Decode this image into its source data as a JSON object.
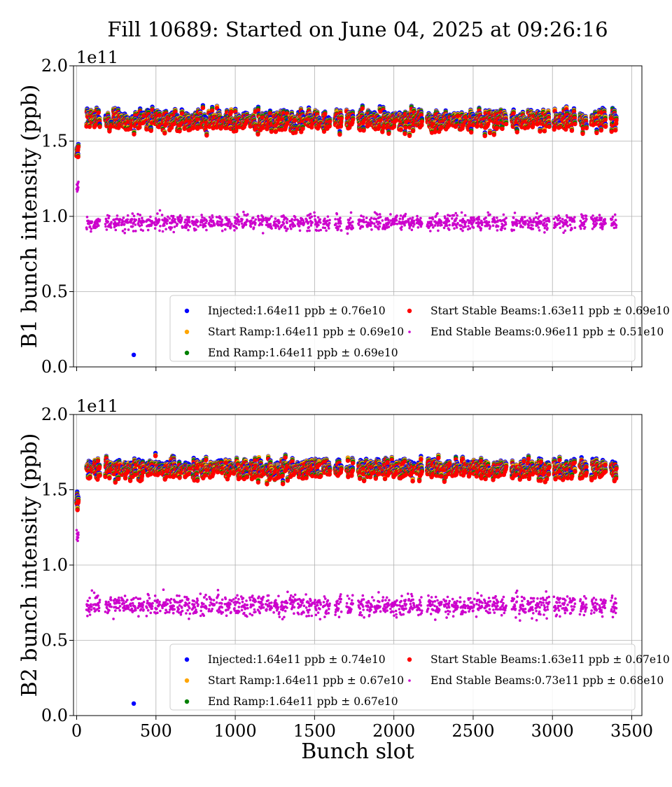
{
  "title": "Fill 10689: Started on June 04, 2025 at 09:26:16",
  "xlabel": "Bunch slot",
  "x_ticks": [
    "0",
    "500",
    "1000",
    "1500",
    "2000",
    "2500",
    "3000",
    "3500"
  ],
  "colors": {
    "injected": "#0000ff",
    "start_ramp": "#ffa500",
    "end_ramp": "#008000",
    "start_stable": "#ff0000",
    "end_stable": "#cc00cc",
    "grid": "#b0b0b0"
  },
  "chart_data": [
    {
      "type": "scatter",
      "ylabel": "B1 bunch intensity (ppb)",
      "y_exponent": "1e11",
      "xlim": [
        -20,
        3564
      ],
      "ylim": [
        0.0,
        2.0
      ],
      "y_ticks": [
        "0.0",
        "0.5",
        "1.0",
        "1.5",
        "2.0"
      ],
      "grid": true,
      "legend_position": "lower-right",
      "series": [
        {
          "key": "injected",
          "name": "Injected:1.64e11 ppb ± 0.76e10",
          "mean": 1.64,
          "std": 0.076
        },
        {
          "key": "start_ramp",
          "name": "Start Ramp:1.64e11 ppb ± 0.69e10",
          "mean": 1.64,
          "std": 0.069
        },
        {
          "key": "end_ramp",
          "name": "End Ramp:1.64e11 ppb ± 0.69e10",
          "mean": 1.64,
          "std": 0.069
        },
        {
          "key": "start_stable",
          "name": "Start Stable Beams:1.63e11 ppb ± 0.69e10",
          "mean": 1.63,
          "std": 0.069
        },
        {
          "key": "end_stable",
          "name": "End Stable Beams:0.96e11 ppb ± 0.51e10",
          "mean": 0.96,
          "std": 0.051
        }
      ],
      "outlier": {
        "x": 360,
        "y": 0.08
      }
    },
    {
      "type": "scatter",
      "ylabel": "B2 bunch intensity (ppb)",
      "y_exponent": "1e11",
      "xlim": [
        -20,
        3564
      ],
      "ylim": [
        0.0,
        2.0
      ],
      "y_ticks": [
        "0.0",
        "0.5",
        "1.0",
        "1.5",
        "2.0"
      ],
      "grid": true,
      "legend_position": "lower-right",
      "series": [
        {
          "key": "injected",
          "name": "Injected:1.64e11 ppb ± 0.74e10",
          "mean": 1.64,
          "std": 0.074
        },
        {
          "key": "start_ramp",
          "name": "Start Ramp:1.64e11 ppb ± 0.67e10",
          "mean": 1.64,
          "std": 0.067
        },
        {
          "key": "end_ramp",
          "name": "End Ramp:1.64e11 ppb ± 0.67e10",
          "mean": 1.64,
          "std": 0.067
        },
        {
          "key": "start_stable",
          "name": "Start Stable Beams:1.63e11 ppb ± 0.67e10",
          "mean": 1.63,
          "std": 0.067
        },
        {
          "key": "end_stable",
          "name": "End Stable Beams:0.73e11 ppb ± 0.68e10",
          "mean": 0.73,
          "std": 0.068
        }
      ],
      "outlier": {
        "x": 360,
        "y": 0.08
      }
    }
  ]
}
